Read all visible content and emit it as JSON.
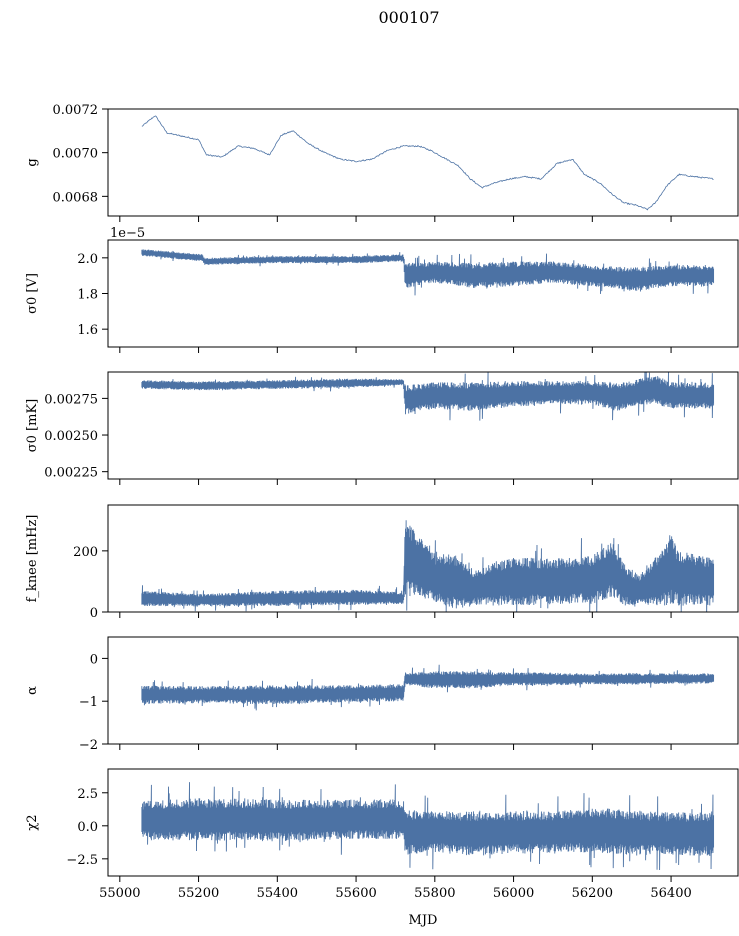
{
  "figure": {
    "title": "000107",
    "series_color": "#4c72a4",
    "xlabel": "MJD",
    "xlim": [
      54970,
      56570
    ],
    "xticks": [
      55000,
      55200,
      55400,
      55600,
      55800,
      56000,
      56200,
      56400
    ],
    "data_x_range": [
      55056,
      56508
    ]
  },
  "chart_data": [
    {
      "type": "line",
      "ylabel": "g",
      "ylim": [
        0.00671,
        0.0072
      ],
      "yticks": [
        0.0068,
        0.007,
        0.0072
      ],
      "ytick_labels": [
        "0.0068",
        "0.0070",
        "0.0072"
      ],
      "scale_note": "",
      "series": [
        {
          "x": [
            55056,
            55090,
            55120,
            55200,
            55220,
            55260,
            55300,
            55340,
            55380,
            55410,
            55440,
            55480,
            55520,
            55560,
            55600,
            55640,
            55680,
            55720,
            55760,
            55790,
            55830,
            55860,
            55890,
            55920,
            55950,
            55990,
            56030,
            56070,
            56110,
            56150,
            56180,
            56220,
            56250,
            56280,
            56310,
            56340,
            56360,
            56390,
            56420,
            56460,
            56508
          ],
          "y": [
            0.00712,
            0.00717,
            0.00709,
            0.00706,
            0.00699,
            0.00698,
            0.00703,
            0.00702,
            0.00699,
            0.00708,
            0.0071,
            0.00704,
            0.007,
            0.00697,
            0.00696,
            0.00697,
            0.00701,
            0.00703,
            0.00703,
            0.00701,
            0.00697,
            0.00694,
            0.00688,
            0.00684,
            0.00686,
            0.00688,
            0.00689,
            0.00688,
            0.00695,
            0.00697,
            0.0069,
            0.00686,
            0.00681,
            0.00677,
            0.00676,
            0.00674,
            0.00677,
            0.00685,
            0.0069,
            0.00689,
            0.00688
          ]
        }
      ]
    },
    {
      "type": "line",
      "ylabel": "σ0 [V]",
      "ylim": [
        1.5,
        2.1
      ],
      "yticks": [
        1.6,
        1.8,
        2.0
      ],
      "ytick_labels": [
        "1.6",
        "1.8",
        "2.0"
      ],
      "scale_note": "1e−5",
      "series": [
        {
          "x": [
            55056,
            55210,
            55215,
            55400,
            55600,
            55720,
            55725,
            55800,
            55900,
            56000,
            56100,
            56200,
            56260,
            56300,
            56400,
            56508
          ],
          "y": [
            2.03,
            2.0,
            1.98,
            1.99,
            1.99,
            2.0,
            1.9,
            1.92,
            1.9,
            1.91,
            1.92,
            1.9,
            1.89,
            1.88,
            1.9,
            1.9
          ],
          "band": [
            0.02,
            0.02,
            0.02,
            0.02,
            0.02,
            0.02,
            0.07,
            0.06,
            0.07,
            0.07,
            0.06,
            0.06,
            0.06,
            0.07,
            0.06,
            0.06
          ]
        }
      ]
    },
    {
      "type": "line",
      "ylabel": "σ0 [mK]",
      "ylim": [
        0.0022,
        0.00293
      ],
      "yticks": [
        0.00225,
        0.0025,
        0.00275
      ],
      "ytick_labels": [
        "0.00225",
        "0.00250",
        "0.00275"
      ],
      "scale_note": "",
      "series": [
        {
          "x": [
            55056,
            55200,
            55400,
            55600,
            55720,
            55725,
            55800,
            55900,
            56000,
            56100,
            56200,
            56260,
            56300,
            56360,
            56400,
            56508
          ],
          "y": [
            0.002845,
            0.002835,
            0.002845,
            0.002855,
            0.00286,
            0.00274,
            0.00277,
            0.00276,
            0.00278,
            0.00279,
            0.00279,
            0.00276,
            0.00278,
            0.00281,
            0.00277,
            0.00277
          ],
          "band": [
            3e-05,
            3e-05,
            3e-05,
            3e-05,
            2e-05,
            0.0001,
            9e-05,
            0.0001,
            9e-05,
            8e-05,
            8e-05,
            0.0001,
            9e-05,
            0.0001,
            9e-05,
            9e-05
          ]
        }
      ]
    },
    {
      "type": "line",
      "ylabel": "f_knee [mHz]",
      "ylim": [
        0,
        350
      ],
      "yticks": [
        0,
        200
      ],
      "ytick_labels": [
        "0",
        "200"
      ],
      "scale_note": "",
      "series": [
        {
          "x": [
            55056,
            55200,
            55400,
            55600,
            55720,
            55725,
            55760,
            55800,
            55850,
            55900,
            55950,
            56000,
            56100,
            56200,
            56250,
            56280,
            56320,
            56360,
            56400,
            56420,
            56508
          ],
          "y": [
            45,
            38,
            45,
            48,
            45,
            180,
            150,
            110,
            100,
            80,
            90,
            100,
            100,
            105,
            140,
            90,
            70,
            100,
            140,
            110,
            100
          ],
          "band": [
            25,
            20,
            25,
            25,
            20,
            130,
            100,
            80,
            90,
            60,
            70,
            80,
            75,
            80,
            90,
            70,
            50,
            80,
            120,
            90,
            80
          ]
        }
      ]
    },
    {
      "type": "line",
      "ylabel": "α",
      "ylim": [
        -2,
        0.5
      ],
      "yticks": [
        -2,
        -1,
        0
      ],
      "ytick_labels": [
        "−2",
        "−1",
        "0"
      ],
      "scale_note": "",
      "series": [
        {
          "x": [
            55056,
            55200,
            55400,
            55600,
            55720,
            55725,
            55800,
            55900,
            56000,
            56100,
            56200,
            56300,
            56400,
            56508
          ],
          "y": [
            -0.85,
            -0.85,
            -0.85,
            -0.82,
            -0.8,
            -0.48,
            -0.5,
            -0.5,
            -0.48,
            -0.48,
            -0.48,
            -0.48,
            -0.47,
            -0.47
          ],
          "band": [
            0.22,
            0.2,
            0.22,
            0.2,
            0.2,
            0.15,
            0.2,
            0.2,
            0.15,
            0.15,
            0.12,
            0.14,
            0.12,
            0.12
          ]
        }
      ]
    },
    {
      "type": "line",
      "ylabel": "χ2",
      "ylim": [
        -3.8,
        4.3
      ],
      "yticks": [
        -2.5,
        0,
        2.5
      ],
      "ytick_labels": [
        "−2.5",
        "0.0",
        "2.5"
      ],
      "scale_note": "",
      "series": [
        {
          "x": [
            55056,
            55200,
            55400,
            55600,
            55720,
            55725,
            55800,
            55900,
            56000,
            56100,
            56200,
            56300,
            56400,
            56508
          ],
          "y": [
            0.4,
            0.5,
            0.4,
            0.5,
            0.5,
            -0.5,
            -0.4,
            -0.6,
            -0.5,
            -0.5,
            -0.3,
            -0.5,
            -0.6,
            -0.6
          ],
          "band": [
            1.5,
            1.6,
            1.6,
            1.5,
            1.5,
            1.7,
            1.6,
            1.7,
            1.6,
            1.6,
            1.7,
            1.7,
            1.6,
            1.7
          ]
        }
      ]
    }
  ]
}
